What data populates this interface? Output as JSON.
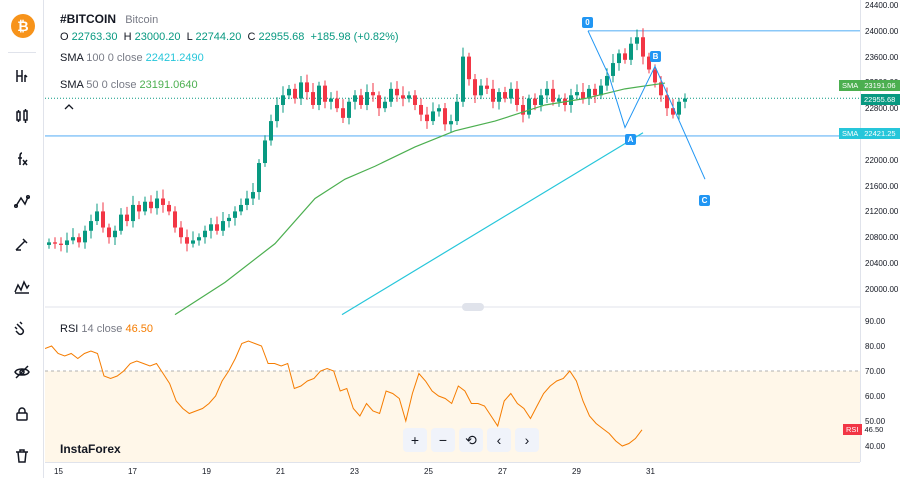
{
  "symbol": {
    "name": "#BITCOIN",
    "description": "Bitcoin",
    "logo_glyph": "₿"
  },
  "ohlc": {
    "o_label": "O",
    "open": "22763.30",
    "h_label": "H",
    "high": "23000.20",
    "l_label": "L",
    "low": "22744.20",
    "c_label": "C",
    "close": "22955.68",
    "change": "+185.98 (+0.82%)"
  },
  "indicators": {
    "sma100": {
      "name": "SMA",
      "params": "100 0 close",
      "value": "22421.2490",
      "color": "#26c6da"
    },
    "sma50": {
      "name": "SMA",
      "params": "50 0 close",
      "value": "23191.0640",
      "color": "#4caf50"
    },
    "rsi": {
      "name": "RSI",
      "params": "14 close",
      "value": "46.50",
      "color": "#f57c00"
    }
  },
  "price_axis": [
    "24400.00",
    "24000.00",
    "23600.00",
    "23200.00",
    "22800.00",
    "22400.00",
    "22000.00",
    "21600.00",
    "21200.00",
    "20800.00",
    "20400.00",
    "20000.00"
  ],
  "rsi_axis": [
    "90.00",
    "80.00",
    "70.00",
    "60.00",
    "50.00",
    "40.00"
  ],
  "badges": {
    "sma50": {
      "label": "SMA",
      "value": "23191.06",
      "color": "#4caf50"
    },
    "price": {
      "value": "22955.68",
      "color": "#089981"
    },
    "sma100": {
      "label": "SMA",
      "value": "22421.25",
      "color": "#26c6da"
    },
    "rsi": {
      "label": "RSI",
      "value": "46.50",
      "color": "#f44336"
    }
  },
  "time_axis": [
    "15",
    "17",
    "19",
    "21",
    "23",
    "25",
    "27",
    "29",
    "31"
  ],
  "wave_labels": {
    "w0": "0",
    "wA": "A",
    "wB": "B",
    "wC": "C"
  },
  "watermark": "InstaForex",
  "nav": {
    "zoom_in": "+",
    "zoom_out": "−",
    "reset": "⟲",
    "back": "‹",
    "forward": "›"
  },
  "colors": {
    "up": "#089981",
    "down": "#f23645",
    "sma50": "#4caf50",
    "sma100": "#26c6da",
    "rsi": "#f57c00",
    "wave": "#2196f3"
  },
  "tools": [
    "bitcoin-logo-icon",
    "fibonacci-h-icon",
    "candles-icon",
    "fx-indicators-icon",
    "line-drawing-icon",
    "brush-icon",
    "pattern-icon",
    "magnet-icon",
    "eye-off-icon",
    "lock-icon",
    "trash-icon"
  ]
}
